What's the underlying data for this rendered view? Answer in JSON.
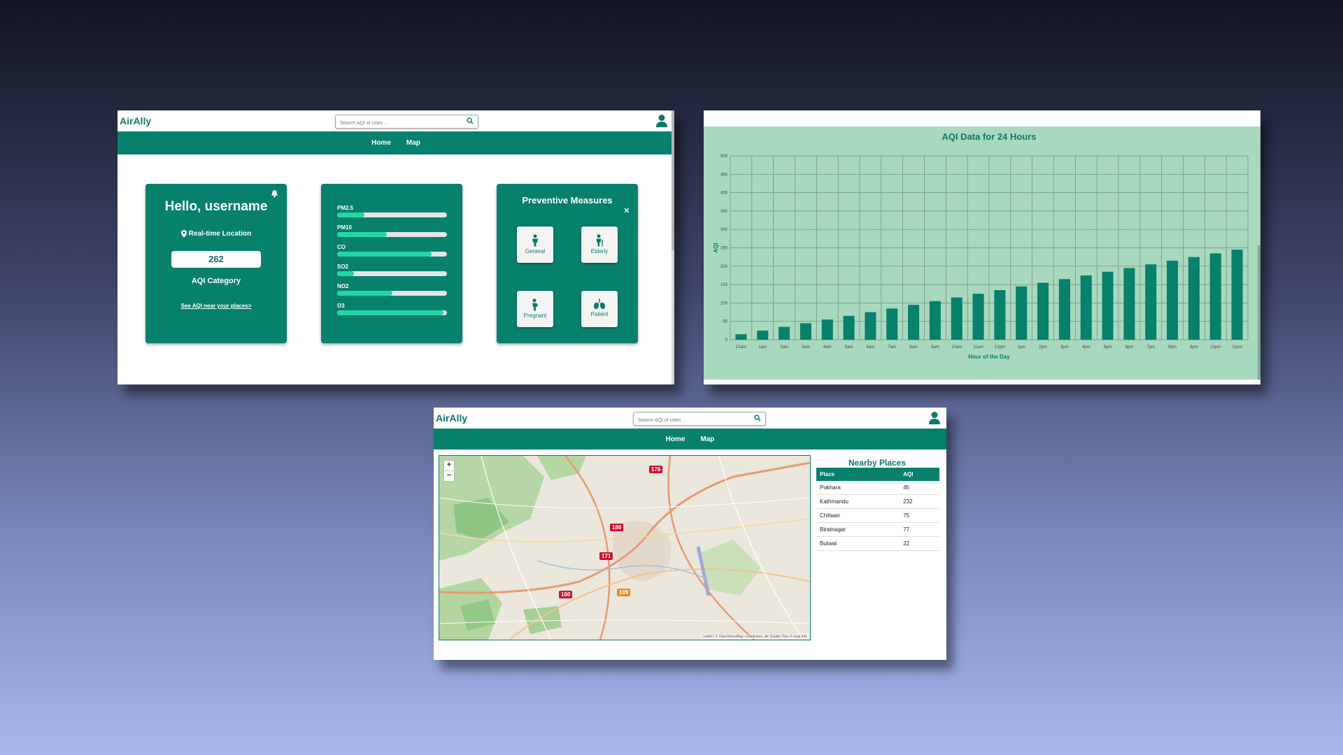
{
  "app": {
    "brand": "AirAlly",
    "search_placeholder": "Search AQI of cities ...",
    "nav": [
      "Home",
      "Map"
    ]
  },
  "home": {
    "greeting": "Hello, username",
    "location_label": "Real-time Location",
    "aqi_value": "262",
    "aqi_category_label": "AQI Category",
    "aqi_link": "See AQI near your places>",
    "pollutants": [
      {
        "name": "PM2.5",
        "level": 0.25
      },
      {
        "name": "PM10",
        "level": 0.45
      },
      {
        "name": "CO",
        "level": 0.86
      },
      {
        "name": "SO2",
        "level": 0.15
      },
      {
        "name": "NO2",
        "level": 0.5
      },
      {
        "name": "O3",
        "level": 0.97
      }
    ],
    "preventive": {
      "title": "Preventive Measures",
      "close": "×",
      "items": [
        "General",
        "Elderly",
        "Pregnant",
        "Patient"
      ]
    }
  },
  "chart_data": {
    "type": "bar",
    "title": "AQI Data for 24 Hours",
    "xlabel": "Hour of the Day",
    "ylabel": "AQI",
    "ylim": [
      0,
      500
    ],
    "yticks": [
      0,
      50,
      100,
      150,
      200,
      250,
      300,
      350,
      400,
      450,
      500
    ],
    "categories": [
      "12am",
      "1am",
      "2am",
      "3am",
      "4am",
      "5am",
      "6am",
      "7am",
      "8am",
      "9am",
      "10am",
      "11am",
      "12pm",
      "1pm",
      "2pm",
      "3pm",
      "4pm",
      "5pm",
      "6pm",
      "7pm",
      "8pm",
      "9pm",
      "10pm",
      "11pm"
    ],
    "values": [
      15,
      25,
      35,
      45,
      55,
      65,
      75,
      85,
      95,
      105,
      115,
      125,
      135,
      145,
      155,
      165,
      175,
      185,
      195,
      205,
      215,
      225,
      235,
      245
    ],
    "grid": true,
    "bar_color": "#07806c"
  },
  "map": {
    "markers": [
      {
        "label": "176",
        "color": "#d0102f"
      },
      {
        "label": "180",
        "color": "#d0102f"
      },
      {
        "label": "171",
        "color": "#d0102f"
      },
      {
        "label": "160",
        "color": "#d0102f"
      },
      {
        "label": "109",
        "color": "#e88d14"
      }
    ],
    "zoom_in": "+",
    "zoom_out": "−",
    "attribution": "Leaflet | © OpenStreetMap contributors, Air Quality Tiles © waqi.info"
  },
  "nearby": {
    "title": "Nearby Places",
    "headers": [
      "Place",
      "AQI"
    ],
    "rows": [
      [
        "Pokhara",
        "45"
      ],
      [
        "Kathmandu",
        "232"
      ],
      [
        "Chitwan",
        "75"
      ],
      [
        "Biratnagar",
        "77"
      ],
      [
        "Butwal",
        "22"
      ]
    ]
  }
}
